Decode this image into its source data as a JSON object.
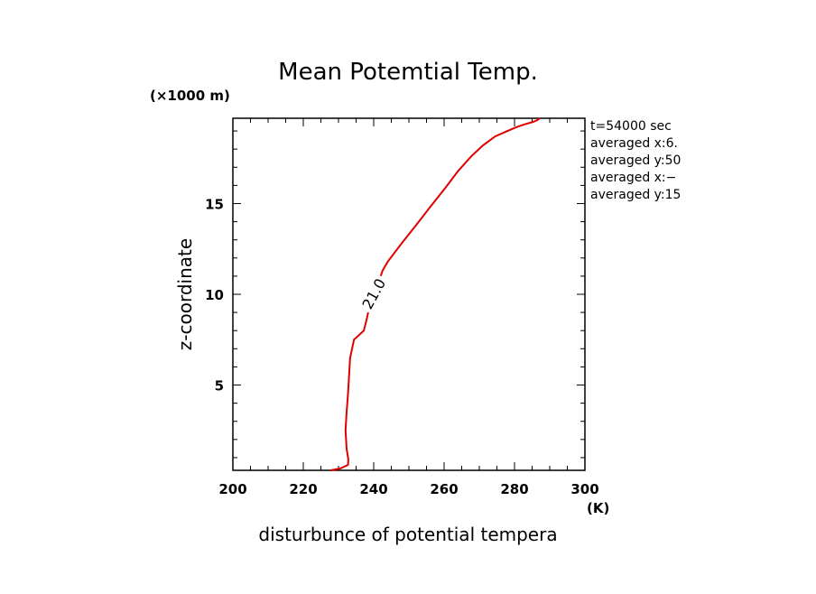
{
  "chart_data": {
    "type": "line",
    "title": "Mean Potemtial Temp.",
    "xlabel": "disturbunce of potential tempera",
    "ylabel": "z-coordinate",
    "x_unit": "(K)",
    "y_unit": "(×1000 m)",
    "xlim": [
      200,
      300
    ],
    "ylim": [
      0.3,
      19.7
    ],
    "x_ticks": [
      200,
      220,
      240,
      260,
      280,
      300
    ],
    "y_ticks": [
      5,
      10,
      15
    ],
    "x_tick_labels": [
      "200",
      "220",
      "240",
      "260",
      "280",
      "300"
    ],
    "y_tick_labels": [
      "5",
      "10",
      "15"
    ],
    "grid": false,
    "line_color": "#e00000",
    "contour_label": "21.0",
    "contour_label_at": {
      "x": 240.3,
      "y": 10.0
    },
    "annotations": [
      "t=54000 sec",
      "averaged  x:6.",
      "averaged  y:50",
      "averaged  x:−",
      "averaged  y:15"
    ],
    "series": [
      {
        "x": [
          227.7,
          230.5,
          232.7,
          232.8,
          232.3,
          232.0,
          232.3,
          232.7,
          233.0,
          233.3,
          234.4,
          237.2,
          238.1,
          238.3,
          242.5,
          244.0,
          247.9,
          252.0,
          256.0,
          260.5,
          264.0,
          267.7,
          271.0,
          274.5,
          278.0,
          280.4,
          282.6,
          285.3,
          286.5,
          287.2
        ],
        "y": [
          0.3,
          0.4,
          0.6,
          0.9,
          1.5,
          2.5,
          3.5,
          4.5,
          5.5,
          6.5,
          7.5,
          8.0,
          8.7,
          8.9,
          11.3,
          11.8,
          12.8,
          13.8,
          14.8,
          15.9,
          16.8,
          17.6,
          18.2,
          18.7,
          19.0,
          19.2,
          19.35,
          19.5,
          19.6,
          19.7
        ]
      }
    ]
  }
}
